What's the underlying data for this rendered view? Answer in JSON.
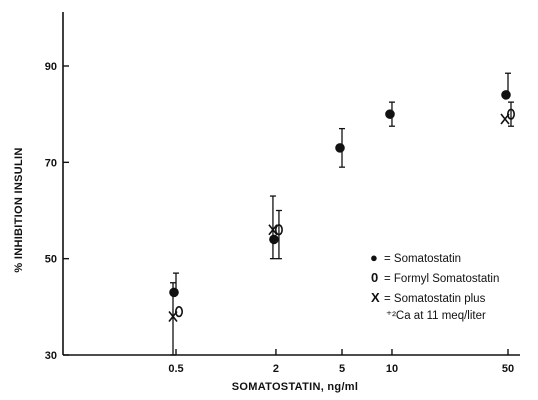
{
  "chart_data": {
    "type": "scatter",
    "xlabel": "SOMATOSTATIN, ng/ml",
    "ylabel": "% INHIBITION INSULIN",
    "x_scale": "log",
    "xlim": [
      0.22,
      62
    ],
    "ylim": [
      30,
      100
    ],
    "x_ticks": [
      0.5,
      2,
      5,
      10,
      50
    ],
    "x_tick_labels": [
      "0.5",
      "2",
      "5",
      "10",
      "50"
    ],
    "y_ticks": [
      30,
      50,
      70,
      90
    ],
    "y_tick_labels": [
      "30",
      "50",
      "70",
      "90"
    ],
    "grid": false,
    "legend_position": "right",
    "series": [
      {
        "name": "= Somatostatin",
        "marker": "filled-circle",
        "x": [
          0.5,
          2,
          5,
          10,
          50
        ],
        "y": [
          43,
          54,
          73,
          80,
          84
        ],
        "err_plus": [
          4,
          0,
          4,
          2.5,
          4.5
        ],
        "err_minus": [
          0,
          0,
          4,
          2.5,
          0
        ]
      },
      {
        "name": "= Formyl Somatostatin",
        "marker": "open-zero",
        "x": [
          0.5,
          2,
          50
        ],
        "y": [
          39,
          56,
          80
        ],
        "err_plus": [
          0,
          4,
          2.5
        ],
        "err_minus": [
          0,
          6,
          2.5
        ]
      },
      {
        "name": "= Somatostatin plus",
        "name_line2": "⁺²Ca at 11 meq/liter",
        "marker": "x",
        "x": [
          0.5,
          2,
          50
        ],
        "y": [
          38,
          56,
          79
        ],
        "err_plus": [
          7,
          7,
          0
        ],
        "err_minus": [
          8,
          6,
          0
        ]
      }
    ]
  }
}
